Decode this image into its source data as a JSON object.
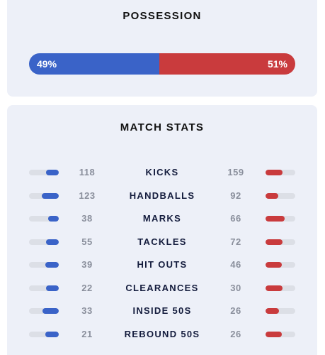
{
  "colors": {
    "home": "#3a63c8",
    "away": "#c93b3d",
    "track": "#dcdfe6"
  },
  "possession": {
    "title": "POSSESSION",
    "home_pct": 49,
    "away_pct": 51,
    "home_label": "49%",
    "away_label": "51%"
  },
  "stats": {
    "title": "MATCH STATS",
    "rows": [
      {
        "label": "KICKS",
        "home": "118",
        "away": "159",
        "home_share": 0.426,
        "away_share": 0.574
      },
      {
        "label": "HANDBALLS",
        "home": "123",
        "away": "92",
        "home_share": 0.572,
        "away_share": 0.428
      },
      {
        "label": "MARKS",
        "home": "38",
        "away": "66",
        "home_share": 0.365,
        "away_share": 0.635
      },
      {
        "label": "TACKLES",
        "home": "55",
        "away": "72",
        "home_share": 0.433,
        "away_share": 0.567
      },
      {
        "label": "HIT OUTS",
        "home": "39",
        "away": "46",
        "home_share": 0.459,
        "away_share": 0.541
      },
      {
        "label": "CLEARANCES",
        "home": "22",
        "away": "30",
        "home_share": 0.423,
        "away_share": 0.577
      },
      {
        "label": "INSIDE 50S",
        "home": "33",
        "away": "26",
        "home_share": 0.559,
        "away_share": 0.441
      },
      {
        "label": "REBOUND 50S",
        "home": "21",
        "away": "26",
        "home_share": 0.447,
        "away_share": 0.553
      }
    ]
  }
}
